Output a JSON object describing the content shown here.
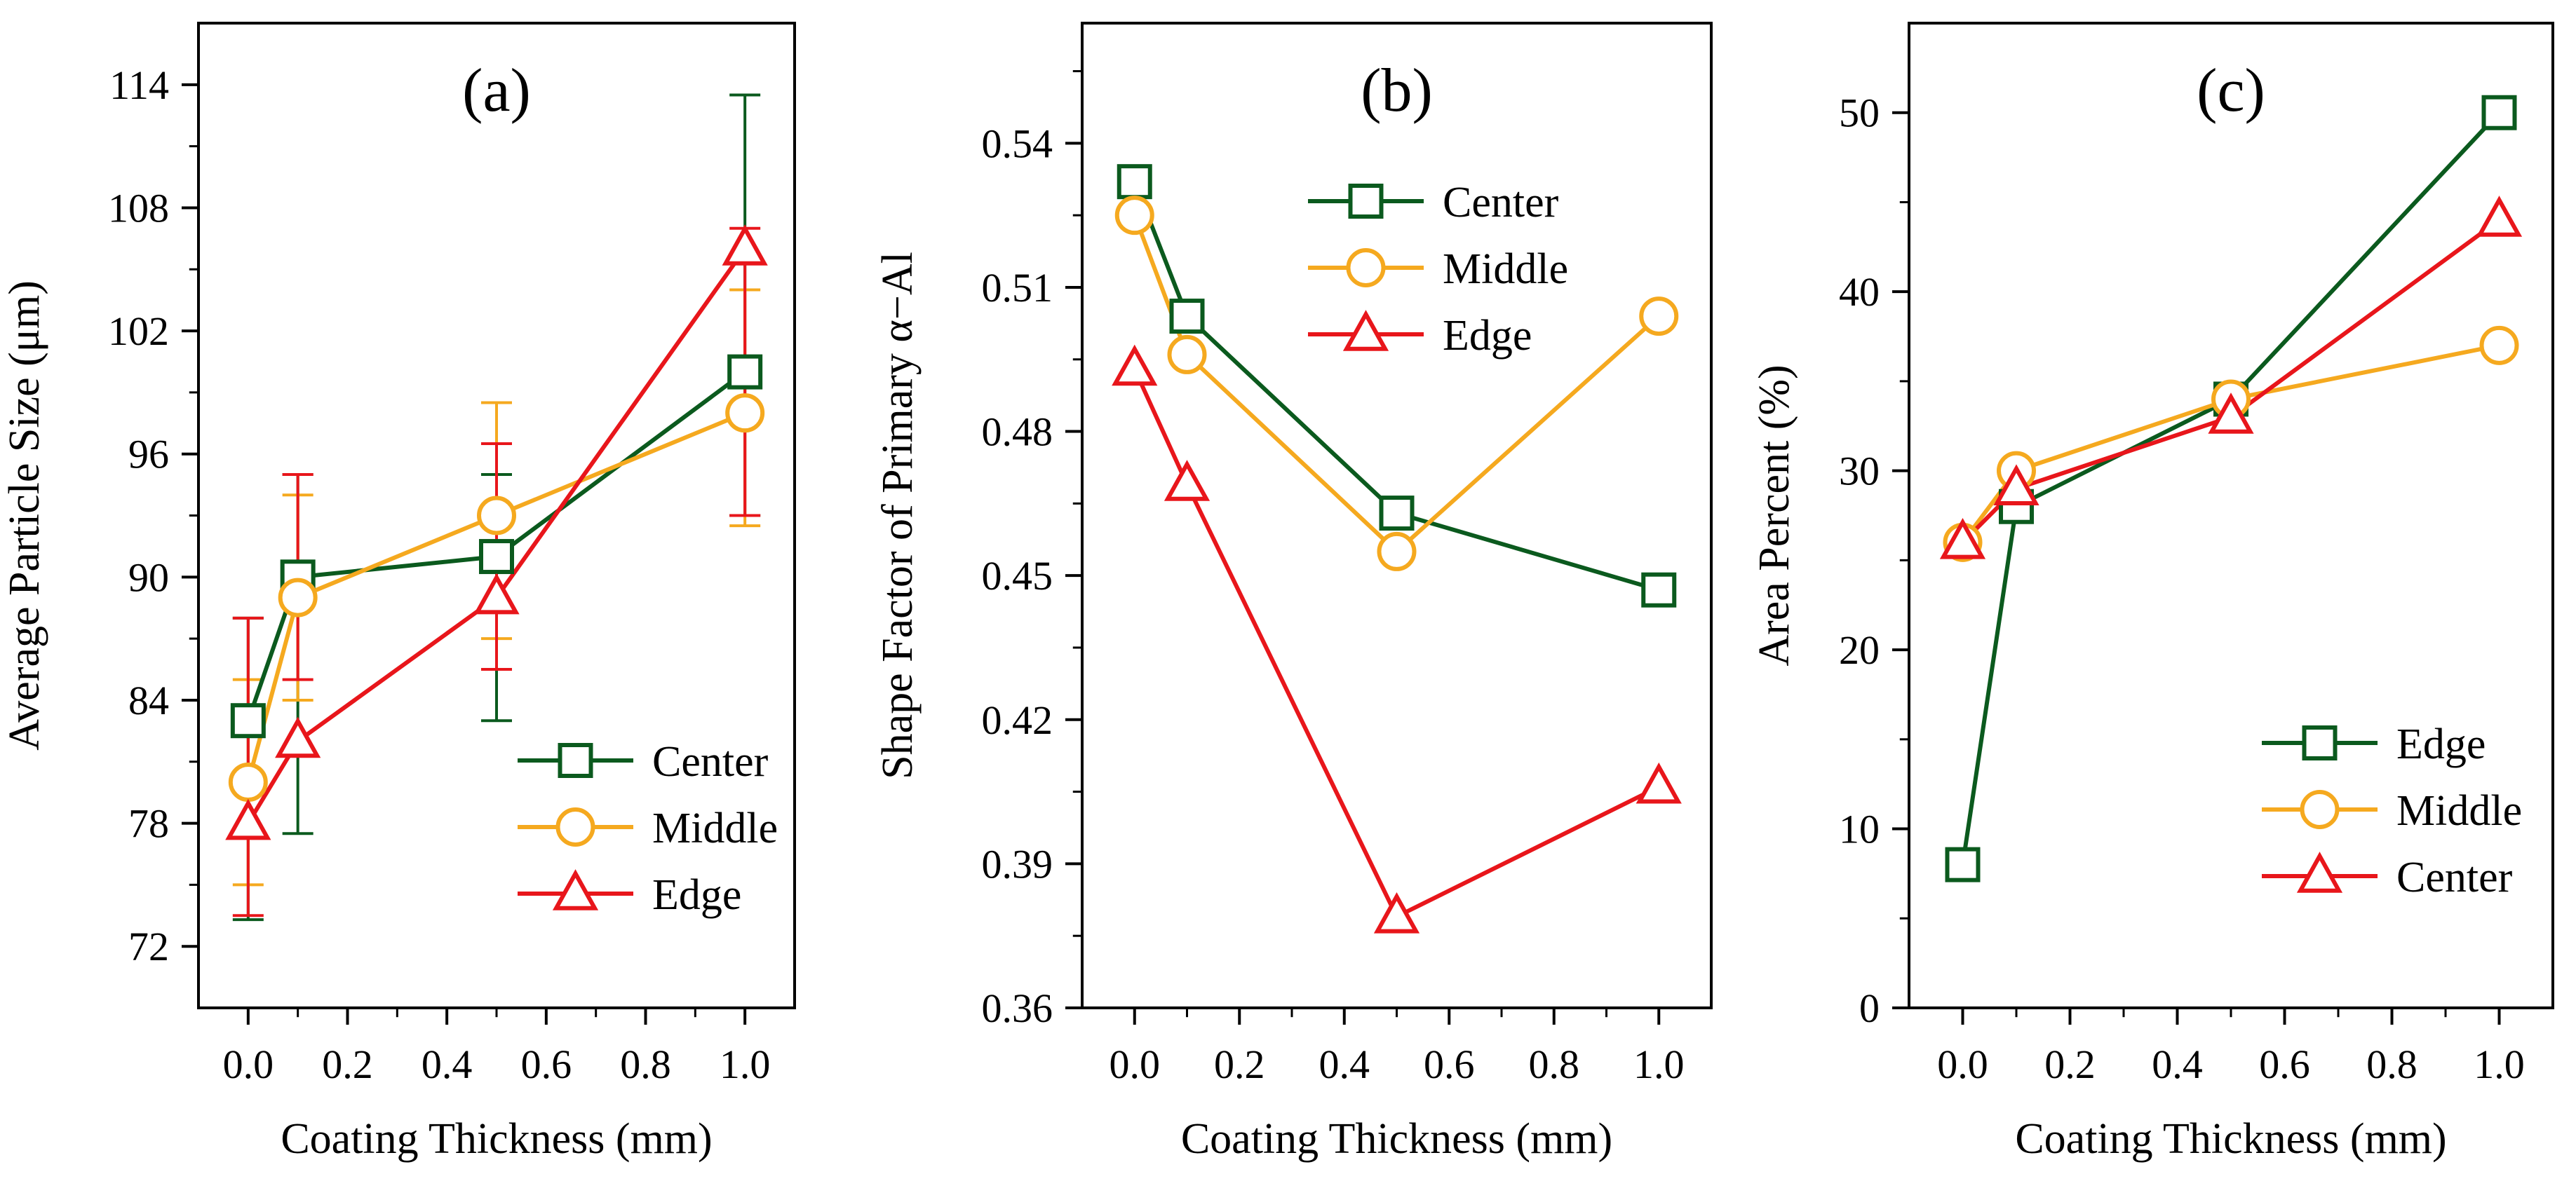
{
  "chart_data": [
    {
      "id": "a",
      "type": "line",
      "title": "(a)",
      "xlabel": "Coating Thickness (mm)",
      "ylabel": "Average Particle Size (μm)",
      "xlim": [
        -0.1,
        1.1
      ],
      "ylim": [
        69,
        117
      ],
      "xticks": [
        0.0,
        0.2,
        0.4,
        0.6,
        0.8,
        1.0
      ],
      "xtick_labels": [
        "0.0",
        "0.2",
        "0.4",
        "0.6",
        "0.8",
        "1.0"
      ],
      "yticks": [
        72,
        78,
        84,
        90,
        96,
        102,
        108,
        114
      ],
      "ytick_labels": [
        "72",
        "78",
        "84",
        "90",
        "96",
        "102",
        "108",
        "114"
      ],
      "legend_position": "lower-right",
      "series": [
        {
          "name": "Center",
          "color": "#0b5a1e",
          "marker": "square",
          "x": [
            0,
            0.1,
            0.5,
            1.0
          ],
          "y": [
            83,
            90,
            91,
            100
          ],
          "err_low": [
            73.3,
            77.5,
            83,
            93
          ],
          "err_high": [
            88,
            95,
            95,
            113.5
          ]
        },
        {
          "name": "Middle",
          "color": "#f5a91f",
          "marker": "circle",
          "x": [
            0,
            0.1,
            0.5,
            1.0
          ],
          "y": [
            80,
            89,
            93,
            98
          ],
          "err_low": [
            75,
            84,
            87,
            92.5
          ],
          "err_high": [
            85,
            94,
            98.5,
            104
          ]
        },
        {
          "name": "Edge",
          "color": "#e8161b",
          "marker": "triangle",
          "x": [
            0,
            0.1,
            0.5,
            1.0
          ],
          "y": [
            78,
            82,
            89,
            106
          ],
          "err_low": [
            73.5,
            85,
            85.5,
            93
          ],
          "err_high": [
            88,
            95,
            96.5,
            107
          ]
        }
      ]
    },
    {
      "id": "b",
      "type": "line",
      "title": "(b)",
      "xlabel": "Coating Thickness (mm)",
      "ylabel": "Shape Factor of Primary α−Al",
      "xlim": [
        -0.1,
        1.1
      ],
      "ylim": [
        0.36,
        0.565
      ],
      "xticks": [
        0.0,
        0.2,
        0.4,
        0.6,
        0.8,
        1.0
      ],
      "xtick_labels": [
        "0.0",
        "0.2",
        "0.4",
        "0.6",
        "0.8",
        "1.0"
      ],
      "yticks": [
        0.36,
        0.39,
        0.42,
        0.45,
        0.48,
        0.51,
        0.54
      ],
      "ytick_labels": [
        "0.36",
        "0.39",
        "0.42",
        "0.45",
        "0.48",
        "0.51",
        "0.54"
      ],
      "legend_position": "top-right",
      "series": [
        {
          "name": "Center",
          "color": "#0b5a1e",
          "marker": "square",
          "x": [
            0,
            0.1,
            0.5,
            1.0
          ],
          "y": [
            0.532,
            0.504,
            0.463,
            0.447
          ]
        },
        {
          "name": "Middle",
          "color": "#f5a91f",
          "marker": "circle",
          "x": [
            0,
            0.1,
            0.5,
            1.0
          ],
          "y": [
            0.525,
            0.496,
            0.455,
            0.504
          ]
        },
        {
          "name": "Edge",
          "color": "#e8161b",
          "marker": "triangle",
          "x": [
            0,
            0.1,
            0.5,
            1.0
          ],
          "y": [
            0.493,
            0.469,
            0.379,
            0.406
          ]
        }
      ]
    },
    {
      "id": "c",
      "type": "line",
      "title": "(c)",
      "xlabel": "Coating Thickness (mm)",
      "ylabel": "Area Percent (%)",
      "xlim": [
        -0.1,
        1.1
      ],
      "ylim": [
        0,
        55
      ],
      "xticks": [
        0.0,
        0.2,
        0.4,
        0.6,
        0.8,
        1.0
      ],
      "xtick_labels": [
        "0.0",
        "0.2",
        "0.4",
        "0.6",
        "0.8",
        "1.0"
      ],
      "yticks": [
        0,
        10,
        20,
        30,
        40,
        50
      ],
      "ytick_labels": [
        "0",
        "10",
        "20",
        "30",
        "40",
        "50"
      ],
      "legend_position": "lower-right",
      "series": [
        {
          "name": "Edge",
          "color": "#0b5a1e",
          "marker": "square",
          "x": [
            0,
            0.1,
            0.5,
            1.0
          ],
          "y": [
            8,
            28,
            34,
            50
          ]
        },
        {
          "name": "Middle",
          "color": "#f5a91f",
          "marker": "circle",
          "x": [
            0,
            0.1,
            0.5,
            1.0
          ],
          "y": [
            26,
            30,
            34,
            37
          ]
        },
        {
          "name": "Center",
          "color": "#e8161b",
          "marker": "triangle",
          "x": [
            0,
            0.1,
            0.5,
            1.0
          ],
          "y": [
            26,
            29,
            33,
            44
          ]
        }
      ]
    }
  ]
}
